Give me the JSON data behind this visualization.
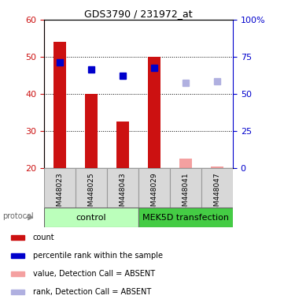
{
  "title": "GDS3790 / 231972_at",
  "samples": [
    "GSM448023",
    "GSM448025",
    "GSM448043",
    "GSM448029",
    "GSM448041",
    "GSM448047"
  ],
  "bar_values": [
    54.0,
    40.0,
    32.5,
    50.0,
    null,
    null
  ],
  "absent_bar_values": [
    null,
    null,
    null,
    null,
    22.5,
    20.5
  ],
  "rank_values_present": [
    48.5,
    46.5,
    45.0,
    47.0,
    null,
    null
  ],
  "rank_values_absent": [
    null,
    null,
    null,
    null,
    43.0,
    43.5
  ],
  "bar_color_present": "#cc1111",
  "bar_color_absent": "#f4a0a0",
  "rank_color_present": "#0000cc",
  "rank_color_absent": "#b0b0e0",
  "ylim_left": [
    20,
    60
  ],
  "ylim_right": [
    0,
    100
  ],
  "yticks_left": [
    20,
    30,
    40,
    50,
    60
  ],
  "yticks_right": [
    0,
    25,
    50,
    75,
    100
  ],
  "yticklabels_right": [
    "0",
    "25",
    "50",
    "75",
    "100%"
  ],
  "left_tick_color": "#cc1111",
  "right_tick_color": "#0000cc",
  "control_color": "#bbffbb",
  "mek_color": "#44cc44",
  "protocol_label": "protocol",
  "control_label": "control",
  "mek_label": "MEK5D transfection",
  "legend_labels": [
    "count",
    "percentile rank within the sample",
    "value, Detection Call = ABSENT",
    "rank, Detection Call = ABSENT"
  ],
  "legend_colors": [
    "#cc1111",
    "#0000cc",
    "#f4a0a0",
    "#b0b0e0"
  ],
  "bar_width": 0.4,
  "marker_size": 6
}
